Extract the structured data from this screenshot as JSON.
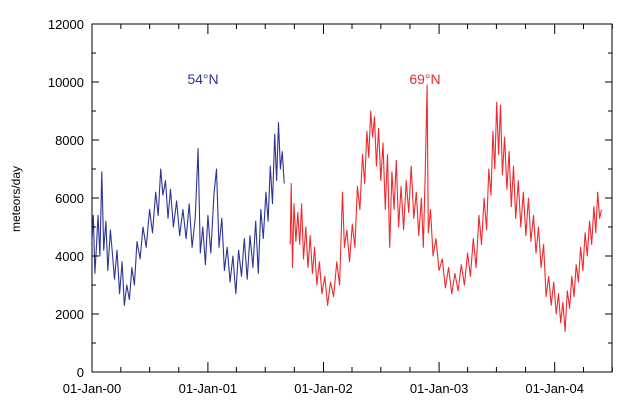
{
  "chart_data": {
    "type": "line",
    "title": "",
    "xlabel": "",
    "ylabel": "meteors/day",
    "xlim": [
      "2000-01-01",
      "2004-06-30"
    ],
    "ylim": [
      0,
      12000
    ],
    "yticks": [
      0,
      2000,
      4000,
      6000,
      8000,
      10000,
      12000
    ],
    "xticks": [
      {
        "date": "2000-01-01",
        "label": "01-Jan-00"
      },
      {
        "date": "2001-01-01",
        "label": "01-Jan-01"
      },
      {
        "date": "2002-01-01",
        "label": "01-Jan-02"
      },
      {
        "date": "2003-01-01",
        "label": "01-Jan-03"
      },
      {
        "date": "2004-01-01",
        "label": "01-Jan-04"
      }
    ],
    "grid": false,
    "legend": "none",
    "series": [
      {
        "name": "54°N",
        "color": "#2d3593",
        "points": [
          [
            "2000-01-01",
            4500
          ],
          [
            "2000-01-05",
            5400
          ],
          [
            "2000-01-10",
            3400
          ],
          [
            "2000-01-15",
            4300
          ],
          [
            "2000-01-20",
            5400
          ],
          [
            "2000-01-26",
            4000
          ],
          [
            "2000-02-01",
            6900
          ],
          [
            "2000-02-07",
            4200
          ],
          [
            "2000-02-14",
            5200
          ],
          [
            "2000-02-20",
            3500
          ],
          [
            "2000-02-28",
            4900
          ],
          [
            "2000-03-06",
            4000
          ],
          [
            "2000-03-12",
            3200
          ],
          [
            "2000-03-20",
            4200
          ],
          [
            "2000-03-28",
            2700
          ],
          [
            "2000-04-05",
            3800
          ],
          [
            "2000-04-12",
            2300
          ],
          [
            "2000-04-20",
            3000
          ],
          [
            "2000-04-28",
            2500
          ],
          [
            "2000-05-06",
            3600
          ],
          [
            "2000-05-14",
            3000
          ],
          [
            "2000-05-22",
            4500
          ],
          [
            "2000-06-01",
            3900
          ],
          [
            "2000-06-10",
            5000
          ],
          [
            "2000-06-20",
            4300
          ],
          [
            "2000-07-01",
            5600
          ],
          [
            "2000-07-10",
            4800
          ],
          [
            "2000-07-20",
            6200
          ],
          [
            "2000-07-28",
            5400
          ],
          [
            "2000-08-05",
            7000
          ],
          [
            "2000-08-12",
            6100
          ],
          [
            "2000-08-20",
            6600
          ],
          [
            "2000-08-28",
            5300
          ],
          [
            "2000-09-05",
            6300
          ],
          [
            "2000-09-14",
            5000
          ],
          [
            "2000-09-24",
            5900
          ],
          [
            "2000-10-04",
            4700
          ],
          [
            "2000-10-14",
            5600
          ],
          [
            "2000-10-24",
            4600
          ],
          [
            "2000-11-03",
            5800
          ],
          [
            "2000-11-12",
            4300
          ],
          [
            "2000-11-22",
            5300
          ],
          [
            "2000-12-01",
            7700
          ],
          [
            "2000-12-08",
            4100
          ],
          [
            "2000-12-16",
            5000
          ],
          [
            "2000-12-24",
            3700
          ],
          [
            "2001-01-01",
            5400
          ],
          [
            "2001-01-10",
            4100
          ],
          [
            "2001-01-20",
            6100
          ],
          [
            "2001-01-28",
            7000
          ],
          [
            "2001-02-05",
            4300
          ],
          [
            "2001-02-14",
            5300
          ],
          [
            "2001-02-22",
            3500
          ],
          [
            "2001-03-03",
            4300
          ],
          [
            "2001-03-12",
            3100
          ],
          [
            "2001-03-21",
            4000
          ],
          [
            "2001-03-30",
            2700
          ],
          [
            "2001-04-08",
            4200
          ],
          [
            "2001-04-17",
            3300
          ],
          [
            "2001-04-26",
            4600
          ],
          [
            "2001-05-05",
            3200
          ],
          [
            "2001-05-14",
            4700
          ],
          [
            "2001-05-23",
            3600
          ],
          [
            "2001-06-01",
            5200
          ],
          [
            "2001-06-09",
            3400
          ],
          [
            "2001-06-17",
            5600
          ],
          [
            "2001-06-25",
            4600
          ],
          [
            "2001-07-03",
            6200
          ],
          [
            "2001-07-10",
            5200
          ],
          [
            "2001-07-17",
            7100
          ],
          [
            "2001-07-24",
            5800
          ],
          [
            "2001-07-31",
            8200
          ],
          [
            "2001-08-06",
            6600
          ],
          [
            "2001-08-12",
            8600
          ],
          [
            "2001-08-18",
            7000
          ],
          [
            "2001-08-24",
            7600
          ],
          [
            "2001-08-30",
            6500
          ]
        ]
      },
      {
        "name": "69°N",
        "color": "#ee2a2e",
        "points": [
          [
            "2001-09-18",
            4400
          ],
          [
            "2001-09-21",
            6500
          ],
          [
            "2001-09-25",
            3600
          ],
          [
            "2001-09-30",
            5800
          ],
          [
            "2001-10-06",
            4500
          ],
          [
            "2001-10-12",
            5500
          ],
          [
            "2001-10-18",
            4400
          ],
          [
            "2001-10-24",
            5800
          ],
          [
            "2001-10-30",
            3900
          ],
          [
            "2001-11-06",
            5000
          ],
          [
            "2001-11-13",
            3600
          ],
          [
            "2001-11-20",
            4700
          ],
          [
            "2001-11-27",
            3400
          ],
          [
            "2001-12-04",
            4300
          ],
          [
            "2001-12-11",
            3000
          ],
          [
            "2001-12-19",
            3800
          ],
          [
            "2001-12-27",
            2700
          ],
          [
            "2002-01-05",
            3300
          ],
          [
            "2002-01-14",
            2300
          ],
          [
            "2002-01-23",
            3100
          ],
          [
            "2002-02-02",
            2600
          ],
          [
            "2002-02-12",
            3800
          ],
          [
            "2002-02-21",
            3000
          ],
          [
            "2002-03-02",
            6200
          ],
          [
            "2002-03-08",
            4300
          ],
          [
            "2002-03-16",
            4900
          ],
          [
            "2002-03-24",
            3800
          ],
          [
            "2002-04-02",
            5100
          ],
          [
            "2002-04-10",
            4300
          ],
          [
            "2002-04-18",
            6400
          ],
          [
            "2002-04-26",
            5600
          ],
          [
            "2002-05-04",
            7500
          ],
          [
            "2002-05-11",
            6500
          ],
          [
            "2002-05-18",
            8300
          ],
          [
            "2002-05-24",
            7400
          ],
          [
            "2002-05-30",
            9000
          ],
          [
            "2002-06-05",
            8100
          ],
          [
            "2002-06-11",
            8800
          ],
          [
            "2002-06-17",
            7100
          ],
          [
            "2002-06-24",
            8400
          ],
          [
            "2002-07-01",
            6600
          ],
          [
            "2002-07-08",
            7900
          ],
          [
            "2002-07-15",
            5600
          ],
          [
            "2002-07-22",
            7500
          ],
          [
            "2002-07-29",
            4300
          ],
          [
            "2002-08-05",
            6900
          ],
          [
            "2002-08-12",
            5600
          ],
          [
            "2002-08-19",
            7300
          ],
          [
            "2002-08-26",
            5000
          ],
          [
            "2002-09-03",
            6400
          ],
          [
            "2002-09-11",
            4900
          ],
          [
            "2002-09-19",
            6600
          ],
          [
            "2002-09-27",
            5500
          ],
          [
            "2002-10-05",
            7100
          ],
          [
            "2002-10-13",
            5300
          ],
          [
            "2002-10-21",
            6200
          ],
          [
            "2002-10-29",
            4700
          ],
          [
            "2002-11-06",
            6000
          ],
          [
            "2002-11-12",
            4300
          ],
          [
            "2002-11-18",
            6800
          ],
          [
            "2002-11-24",
            9900
          ],
          [
            "2002-11-28",
            4800
          ],
          [
            "2002-12-05",
            5600
          ],
          [
            "2002-12-13",
            4000
          ],
          [
            "2002-12-22",
            4600
          ],
          [
            "2003-01-01",
            3500
          ],
          [
            "2003-01-11",
            3900
          ],
          [
            "2003-01-21",
            2900
          ],
          [
            "2003-01-31",
            3600
          ],
          [
            "2003-02-10",
            2700
          ],
          [
            "2003-02-20",
            3400
          ],
          [
            "2003-03-02",
            2800
          ],
          [
            "2003-03-12",
            3700
          ],
          [
            "2003-03-22",
            3000
          ],
          [
            "2003-04-01",
            4100
          ],
          [
            "2003-04-10",
            3300
          ],
          [
            "2003-04-19",
            4600
          ],
          [
            "2003-04-28",
            3600
          ],
          [
            "2003-05-07",
            5400
          ],
          [
            "2003-05-15",
            4400
          ],
          [
            "2003-05-23",
            6000
          ],
          [
            "2003-05-31",
            4900
          ],
          [
            "2003-06-07",
            7000
          ],
          [
            "2003-06-14",
            6100
          ],
          [
            "2003-06-20",
            8300
          ],
          [
            "2003-06-26",
            7000
          ],
          [
            "2003-07-02",
            9300
          ],
          [
            "2003-07-08",
            7500
          ],
          [
            "2003-07-14",
            9200
          ],
          [
            "2003-07-20",
            6800
          ],
          [
            "2003-07-27",
            8100
          ],
          [
            "2003-08-03",
            6300
          ],
          [
            "2003-08-10",
            7600
          ],
          [
            "2003-08-17",
            5700
          ],
          [
            "2003-08-24",
            7100
          ],
          [
            "2003-08-31",
            5300
          ],
          [
            "2003-09-08",
            6600
          ],
          [
            "2003-09-16",
            5000
          ],
          [
            "2003-09-24",
            6200
          ],
          [
            "2003-10-02",
            4700
          ],
          [
            "2003-10-10",
            6000
          ],
          [
            "2003-10-18",
            4500
          ],
          [
            "2003-10-26",
            5400
          ],
          [
            "2003-11-03",
            4100
          ],
          [
            "2003-11-11",
            5000
          ],
          [
            "2003-11-19",
            3600
          ],
          [
            "2003-11-27",
            4400
          ],
          [
            "2003-12-05",
            2600
          ],
          [
            "2003-12-13",
            3300
          ],
          [
            "2003-12-21",
            2300
          ],
          [
            "2003-12-29",
            3100
          ],
          [
            "2004-01-06",
            2000
          ],
          [
            "2004-01-13",
            2700
          ],
          [
            "2004-01-20",
            1700
          ],
          [
            "2004-01-27",
            2400
          ],
          [
            "2004-02-03",
            1400
          ],
          [
            "2004-02-10",
            2800
          ],
          [
            "2004-02-17",
            2200
          ],
          [
            "2004-02-24",
            3300
          ],
          [
            "2004-03-02",
            2600
          ],
          [
            "2004-03-09",
            3700
          ],
          [
            "2004-03-16",
            3100
          ],
          [
            "2004-03-23",
            4300
          ],
          [
            "2004-03-30",
            3500
          ],
          [
            "2004-04-06",
            4800
          ],
          [
            "2004-04-13",
            4000
          ],
          [
            "2004-04-20",
            5200
          ],
          [
            "2004-04-27",
            4400
          ],
          [
            "2004-05-04",
            5700
          ],
          [
            "2004-05-10",
            4800
          ],
          [
            "2004-05-16",
            6200
          ],
          [
            "2004-05-22",
            5300
          ],
          [
            "2004-05-28",
            5600
          ]
        ]
      }
    ]
  }
}
